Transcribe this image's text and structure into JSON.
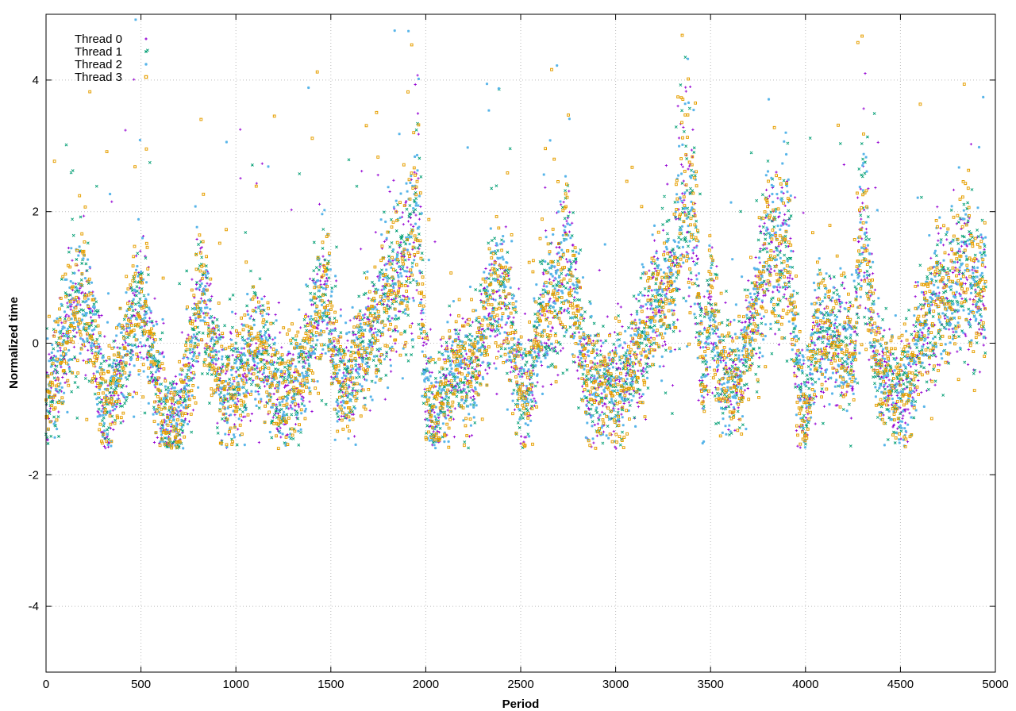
{
  "chart_data": {
    "type": "scatter",
    "title": "",
    "xlabel": "Period",
    "ylabel": "Normalized time",
    "xlim": [
      0,
      5000
    ],
    "ylim": [
      -5,
      5
    ],
    "x_ticks": [
      0,
      500,
      1000,
      1500,
      2000,
      2500,
      3000,
      3500,
      4000,
      4500,
      5000
    ],
    "y_ticks": [
      -4,
      -2,
      0,
      2,
      4
    ],
    "grid": true,
    "legend_position": "top-left",
    "n_points_per_series": 4950,
    "series": [
      {
        "name": "Thread 0",
        "color": "#9400d3",
        "marker": "plus"
      },
      {
        "name": "Thread 1",
        "color": "#009e73",
        "marker": "cross"
      },
      {
        "name": "Thread 2",
        "color": "#56b4e9",
        "marker": "star"
      },
      {
        "name": "Thread 3",
        "color": "#e69f00",
        "marker": "square"
      }
    ],
    "trend_profile": {
      "x": [
        0,
        60,
        150,
        200,
        250,
        300,
        400,
        480,
        520,
        580,
        650,
        720,
        760,
        820,
        860,
        920,
        1000,
        1080,
        1130,
        1180,
        1250,
        1320,
        1380,
        1430,
        1480,
        1530,
        1600,
        1700,
        1800,
        1900,
        1960,
        2000,
        2050,
        2150,
        2250,
        2350,
        2400,
        2470,
        2520,
        2600,
        2700,
        2740,
        2780,
        2850,
        2950,
        3050,
        3200,
        3300,
        3370,
        3420,
        3460,
        3500,
        3560,
        3650,
        3750,
        3800,
        3850,
        3900,
        3950,
        4000,
        4050,
        4150,
        4250,
        4300,
        4330,
        4360,
        4400,
        4480,
        4560,
        4620,
        4700,
        4800,
        4850,
        4900,
        4950
      ],
      "y": [
        -1.0,
        -0.3,
        0.5,
        0.8,
        0.1,
        -1.0,
        -0.3,
        0.6,
        0.5,
        -0.6,
        -1.2,
        -1.0,
        -0.2,
        0.8,
        0.2,
        -0.7,
        -0.6,
        -0.2,
        0.0,
        -0.5,
        -0.9,
        -0.6,
        -0.2,
        0.6,
        0.8,
        -0.5,
        -0.5,
        0.0,
        0.8,
        1.2,
        2.0,
        -0.8,
        -1.1,
        -0.4,
        -0.5,
        0.8,
        0.9,
        -0.2,
        -0.9,
        0.2,
        0.8,
        1.5,
        0.6,
        -0.5,
        -0.7,
        -0.6,
        0.5,
        1.0,
        2.5,
        1.5,
        -0.6,
        0.7,
        -0.6,
        -0.6,
        0.6,
        1.7,
        1.2,
        1.7,
        -0.3,
        -1.2,
        0.2,
        0.2,
        -0.3,
        2.0,
        1.2,
        0.0,
        -0.6,
        -0.8,
        -0.5,
        0.3,
        0.6,
        0.8,
        1.4,
        0.6,
        1.0
      ],
      "spread": 0.45,
      "floor": -1.6,
      "ceiling": 4.95
    }
  }
}
